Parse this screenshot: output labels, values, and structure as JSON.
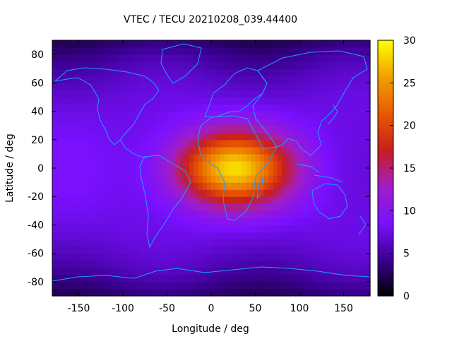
{
  "chart_data": {
    "type": "heatmap",
    "title": "VTEC / TECU 20210208_039.44400",
    "xlabel": "Longitude / deg",
    "ylabel": "Latitude / deg",
    "xlim": [
      -180,
      180
    ],
    "ylim": [
      -90,
      90
    ],
    "xticks": [
      -150,
      -100,
      -50,
      0,
      50,
      100,
      150
    ],
    "yticks": [
      -80,
      -60,
      -40,
      -20,
      0,
      20,
      40,
      60,
      80
    ],
    "colorbar": {
      "range": [
        0,
        30
      ],
      "ticks": [
        0,
        5,
        10,
        15,
        20,
        25,
        30
      ],
      "palette": [
        "#000000",
        "#3a0090",
        "#7a10ff",
        "#a01ec8",
        "#c81e1e",
        "#e85a00",
        "#f0a000",
        "#ffff00"
      ]
    },
    "field": {
      "background_vtec": 8,
      "polar_vtec": 3,
      "peak_vtec": 28,
      "peak_center_lon": 25,
      "peak_center_lat": 0,
      "peak_lon_halfwidth": 70,
      "peak_lat_halfwidth": 28,
      "note": "smooth daytime ionospheric enhancement centered over equatorial Africa"
    },
    "overlay": "continent coastlines"
  }
}
